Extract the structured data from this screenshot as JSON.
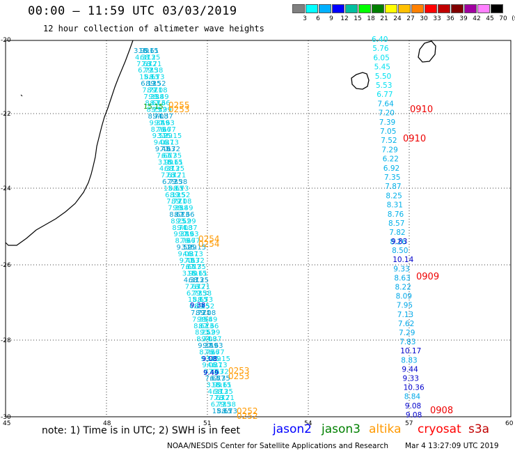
{
  "header": {
    "title": "00:00 – 11:59 UTC 03/03/2019",
    "subtitle": "12 hour collection of altimeter wave heights"
  },
  "color_scale": {
    "labels": [
      "3",
      "6",
      "9",
      "12",
      "15",
      "18",
      "21",
      "24",
      "27",
      "30",
      "33",
      "36",
      "39",
      "42",
      "45",
      "70",
      "(ft)"
    ],
    "colors": [
      "#808080",
      "#00ffff",
      "#00b0ff",
      "#0000ff",
      "#00c0a0",
      "#00ff00",
      "#008000",
      "#ffff00",
      "#ffc000",
      "#ff8000",
      "#ff0000",
      "#c00000",
      "#800000",
      "#a000a0",
      "#ff80ff",
      "#000000"
    ]
  },
  "axes": {
    "lon_labels": [
      "45",
      "48",
      "51",
      "54",
      "57",
      "60"
    ],
    "lat_labels": [
      "-20",
      "-22",
      "-24",
      "-26",
      "-28",
      "-30"
    ]
  },
  "tracks": {
    "east_cyan_values": [
      "6.40",
      "5.76",
      "6.05",
      "5.45",
      "5.50",
      "5.53",
      "6.77",
      "7.64",
      "7.20",
      "7.39",
      "7.05",
      "7.52",
      "7.29",
      "6.22",
      "6.92",
      "7.35",
      "7.87",
      "8.25",
      "8.31",
      "8.76",
      "8.57",
      "7.82",
      "8.26"
    ],
    "east_dark_values": [
      "9.83",
      "8.50",
      "10.14",
      "9.33",
      "8.63",
      "8.22",
      "8.09",
      "7.95",
      "7.13",
      "7.62",
      "7.29",
      "7.83",
      "10.17",
      "8.83",
      "9.44",
      "9.33",
      "10.36",
      "8.84",
      "9.08",
      "9.08"
    ],
    "west_values": [
      "3.99",
      "4.37",
      "7.63",
      "6.77",
      "15.15",
      "6.13",
      "7.72",
      "7.35",
      "8.61",
      "8.25",
      "8.71",
      "9.38",
      "8.73",
      "9.52",
      "9.08",
      "9.49",
      "7.66"
    ]
  },
  "time_labels": {
    "altika": [
      "0255",
      "0253",
      "0254",
      "0254",
      "0253",
      "0253",
      "0252",
      "0252"
    ],
    "cryosat": [
      "0910",
      "0910",
      "0909",
      "0908"
    ]
  },
  "footer": {
    "note": "note:  1) Time is in UTC;  2) SWH is in feet",
    "legend": [
      {
        "label": "jason2",
        "color": "#0000ff"
      },
      {
        "label": "jason3",
        "color": "#008000"
      },
      {
        "label": "altika",
        "color": "#ff9900"
      },
      {
        "label": "cryosat",
        "color": "#ff0000"
      },
      {
        "label": "s3a",
        "color": "#c00000"
      }
    ],
    "credit": "NOAA/NESDIS Center for Satellite Applications and Research",
    "timestamp": "Mar  4 13:27:09 UTC 2019"
  }
}
